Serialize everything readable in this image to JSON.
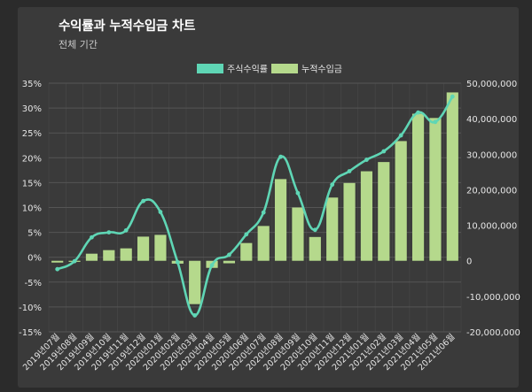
{
  "title": "수익률과 누적수입금 차트",
  "subtitle": "전체 기간",
  "colors": {
    "line": "#5fd6b5",
    "bar": "#b5d98c",
    "grid": "#555555",
    "tick": "#e6e6e6"
  },
  "chart_data": {
    "type": "bar",
    "legend_position": "top-center",
    "grid": true,
    "categories": [
      "2019년07월",
      "2019년08월",
      "2019년09월",
      "2019년10월",
      "2019년11월",
      "2019년12월",
      "2020년01월",
      "2020년02월",
      "2020년03월",
      "2020년04월",
      "2020년05월",
      "2020년06월",
      "2020년07월",
      "2020년08월",
      "2020년09월",
      "2020년10월",
      "2020년11월",
      "2020년12월",
      "2021년01월",
      "2021년02월",
      "2021년03월",
      "2021년04월",
      "2021년05월",
      "2021년06월"
    ],
    "series": [
      {
        "name": "누적수입금",
        "type": "bar",
        "axis": "right",
        "values": [
          -500000,
          -300000,
          2000000,
          3000000,
          3500000,
          6800000,
          7300000,
          -800000,
          -12200000,
          -2000000,
          -700000,
          5000000,
          9800000,
          23000000,
          15000000,
          6700000,
          17800000,
          21900000,
          25200000,
          27800000,
          33700000,
          41400000,
          40200000,
          47400000
        ]
      },
      {
        "name": "주식수익률",
        "type": "line",
        "axis": "left",
        "values": [
          -2.4,
          -0.8,
          4.0,
          5.0,
          5.4,
          11.3,
          9.1,
          -1.0,
          -11.7,
          -1.6,
          0.5,
          4.6,
          9.0,
          20.2,
          12.9,
          5.5,
          14.6,
          17.3,
          19.6,
          21.3,
          24.5,
          29.1,
          27.2,
          32.3
        ]
      }
    ],
    "y_left": {
      "min": -15,
      "max": 35,
      "step": 5,
      "tick_suffix": "%"
    },
    "y_right": {
      "min": -20000000,
      "max": 50000000,
      "step": 10000000
    }
  }
}
